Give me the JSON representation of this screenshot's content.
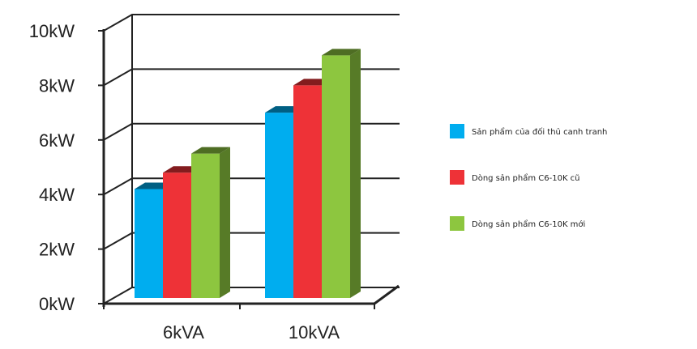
{
  "chart_data": {
    "type": "bar",
    "categories": [
      "6kVA",
      "10kVA"
    ],
    "series": [
      {
        "name": "Sản phẩm của đối thủ canh tranh",
        "color": "#00adef",
        "values": [
          4.2,
          7.0
        ]
      },
      {
        "name": "Dòng sản phẩm C6-10K cũ",
        "color": "#ee3237",
        "values": [
          4.8,
          8.0
        ]
      },
      {
        "name": "Dòng sản phẩm C6-10K mới",
        "color": "#8dc63f",
        "values": [
          5.5,
          9.1
        ]
      }
    ],
    "ylim": [
      0,
      10
    ],
    "ytick_values": [
      0,
      2,
      4,
      6,
      8,
      10
    ],
    "ytick_labels": [
      "0kW",
      "2kW",
      "4kW",
      "6kW",
      "8kW",
      "10kW"
    ],
    "grid": true,
    "legend_position": "right",
    "style": "3d"
  }
}
